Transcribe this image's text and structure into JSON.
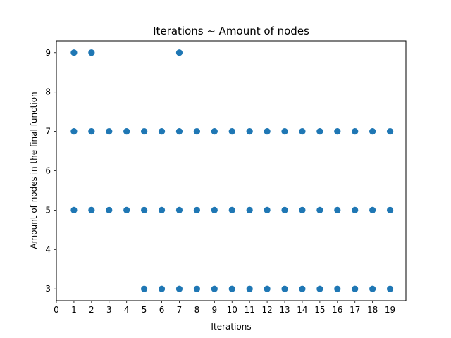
{
  "chart_data": {
    "type": "scatter",
    "title": "Iterations ~ Amount of nodes",
    "xlabel": "Iterations",
    "ylabel": "Amount of nodes in the final function",
    "xlim": [
      0,
      19.9
    ],
    "ylim": [
      2.7,
      9.3
    ],
    "xticks": [
      "0",
      "1",
      "2",
      "3",
      "4",
      "5",
      "6",
      "7",
      "8",
      "9",
      "10",
      "11",
      "12",
      "13",
      "14",
      "15",
      "16",
      "17",
      "18",
      "19"
    ],
    "yticks": [
      "3",
      "4",
      "5",
      "6",
      "7",
      "8",
      "9"
    ],
    "grid": false,
    "marker_color": "#1f77b4",
    "points": [
      [
        1,
        9
      ],
      [
        1,
        7
      ],
      [
        1,
        5
      ],
      [
        2,
        9
      ],
      [
        2,
        7
      ],
      [
        2,
        5
      ],
      [
        3,
        7
      ],
      [
        3,
        5
      ],
      [
        4,
        7
      ],
      [
        4,
        5
      ],
      [
        5,
        7
      ],
      [
        5,
        5
      ],
      [
        5,
        3
      ],
      [
        6,
        7
      ],
      [
        6,
        5
      ],
      [
        6,
        3
      ],
      [
        7,
        9
      ],
      [
        7,
        7
      ],
      [
        7,
        5
      ],
      [
        7,
        3
      ],
      [
        8,
        7
      ],
      [
        8,
        5
      ],
      [
        8,
        3
      ],
      [
        9,
        7
      ],
      [
        9,
        5
      ],
      [
        9,
        3
      ],
      [
        10,
        7
      ],
      [
        10,
        5
      ],
      [
        10,
        3
      ],
      [
        11,
        7
      ],
      [
        11,
        5
      ],
      [
        11,
        3
      ],
      [
        12,
        7
      ],
      [
        12,
        5
      ],
      [
        12,
        3
      ],
      [
        13,
        7
      ],
      [
        13,
        5
      ],
      [
        13,
        3
      ],
      [
        14,
        7
      ],
      [
        14,
        5
      ],
      [
        14,
        3
      ],
      [
        15,
        7
      ],
      [
        15,
        5
      ],
      [
        15,
        3
      ],
      [
        16,
        7
      ],
      [
        16,
        5
      ],
      [
        16,
        3
      ],
      [
        17,
        7
      ],
      [
        17,
        5
      ],
      [
        17,
        3
      ],
      [
        18,
        7
      ],
      [
        18,
        5
      ],
      [
        18,
        3
      ],
      [
        19,
        7
      ],
      [
        19,
        5
      ],
      [
        19,
        3
      ]
    ]
  }
}
